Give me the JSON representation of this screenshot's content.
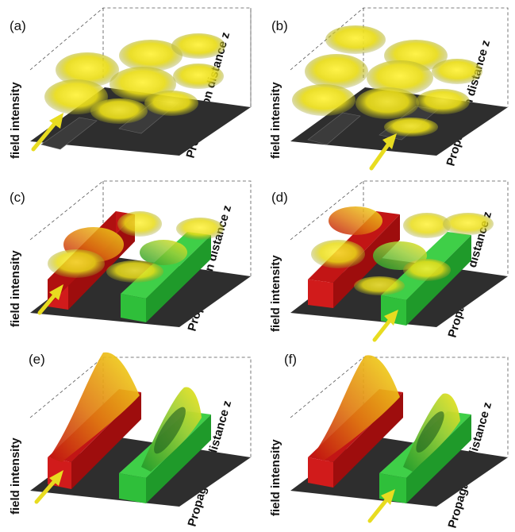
{
  "panels": [
    {
      "label": "(a)",
      "guides": "none",
      "input": "left"
    },
    {
      "label": "(b)",
      "guides": "none",
      "input": "right"
    },
    {
      "label": "(c)",
      "guides": "red-green",
      "input": "left"
    },
    {
      "label": "(d)",
      "guides": "red-green",
      "input": "right"
    },
    {
      "label": "(e)",
      "guides": "red-green",
      "input": "left"
    },
    {
      "label": "(f)",
      "guides": "red-green",
      "input": "right"
    }
  ],
  "axis": {
    "vertical": "field intensity",
    "depth": "Propagation distance z"
  },
  "colors": {
    "substrate": "#2e2e2e",
    "guide_passive": "#3a3a3a",
    "guide_gain": "#d21a1a",
    "guide_loss": "#2fbf3a",
    "field": "#f2e21a",
    "arrow": "#e8dc20"
  },
  "icons": {
    "input_beam": "arrow-icon"
  }
}
